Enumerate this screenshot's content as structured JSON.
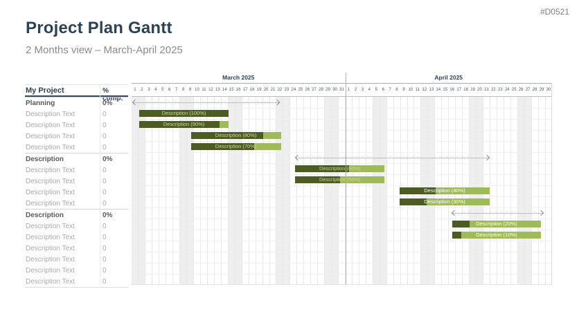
{
  "slide": {
    "id_tag": "#D0521",
    "title": "Project Plan Gantt",
    "subtitle": "2 Months view – March-April 2025"
  },
  "table": {
    "name_header": "My Project",
    "percent_header": "% comp."
  },
  "colors": {
    "navy": "#2d4355",
    "dark_green": "#4d5c23",
    "light_green": "#9fba59",
    "pale_label_green": "#ccd9a0",
    "white_label": "#ffffff",
    "section_text": "#595959",
    "task_text": "#a8a8a8",
    "arrow_gray": "#8c8c8c",
    "weekend_stripe": "#eeeeee"
  },
  "chart_data": {
    "type": "bar",
    "subtype": "gantt",
    "title": "Project Plan Gantt",
    "timeline": {
      "months": [
        {
          "label": "March 2025",
          "days": 31
        },
        {
          "label": "April 2025",
          "days": 30
        }
      ],
      "total_days": 61,
      "weekend_shading_day_starts": [
        0,
        7,
        14,
        21,
        28,
        35,
        42,
        49,
        56
      ]
    },
    "rows": [
      {
        "kind": "section",
        "label": "Planning",
        "value": "0%",
        "arrow": {
          "start_day": 0.3,
          "end_day": 21.3
        }
      },
      {
        "kind": "task",
        "label": "Description Text",
        "value": "0",
        "bar": {
          "label": "Description (100%)",
          "start_day": 1.08,
          "end_day": 14.1,
          "fill_percent": 100
        }
      },
      {
        "kind": "task",
        "label": "Description Text",
        "value": "0",
        "bar": {
          "label": "Description (90%)",
          "start_day": 1.08,
          "end_day": 14.1,
          "fill_percent": 90
        }
      },
      {
        "kind": "task",
        "label": "Description Text",
        "value": "0",
        "bar": {
          "label": "Description (80%)",
          "start_day": 8.61,
          "end_day": 21.66,
          "fill_percent": 80
        }
      },
      {
        "kind": "task",
        "label": "Description Text",
        "value": "0",
        "bar": {
          "label": "Description (70%)",
          "start_day": 8.61,
          "end_day": 21.66,
          "fill_percent": 70
        }
      },
      {
        "kind": "section",
        "label": "Description",
        "value": "0%",
        "arrow": {
          "start_day": 23.9,
          "end_day": 51.8
        }
      },
      {
        "kind": "task",
        "label": "Description Text",
        "value": "0",
        "bar": {
          "label": "Description (60%)",
          "start_day": 23.72,
          "end_day": 36.73,
          "fill_percent": 60
        }
      },
      {
        "kind": "task",
        "label": "Description Text",
        "value": "0",
        "bar": {
          "label": "Description (50%)",
          "start_day": 23.72,
          "end_day": 36.73,
          "fill_percent": 50
        }
      },
      {
        "kind": "task",
        "label": "Description Text",
        "value": "0",
        "bar": {
          "label": "Description (40%)",
          "start_day": 38.86,
          "end_day": 52.0,
          "fill_percent": 40
        }
      },
      {
        "kind": "task",
        "label": "Description Text",
        "value": "0",
        "bar": {
          "label": "Description (30%)",
          "start_day": 38.86,
          "end_day": 52.0,
          "fill_percent": 30
        }
      },
      {
        "kind": "section",
        "label": "Description",
        "value": "0%",
        "arrow": {
          "start_day": 46.6,
          "end_day": 59.6
        }
      },
      {
        "kind": "task",
        "label": "Description Text",
        "value": "0",
        "bar": {
          "label": "Description (20%)",
          "start_day": 46.5,
          "end_day": 59.4,
          "fill_percent": 20
        }
      },
      {
        "kind": "task",
        "label": "Description Text",
        "value": "0",
        "bar": {
          "label": "Description (10%)",
          "start_day": 46.5,
          "end_day": 59.4,
          "fill_percent": 10
        }
      },
      {
        "kind": "task",
        "label": "Description Text",
        "value": "0"
      },
      {
        "kind": "task",
        "label": "Description Text",
        "value": "0"
      },
      {
        "kind": "task",
        "label": "Description Text",
        "value": "0"
      },
      {
        "kind": "task",
        "label": "Description Text",
        "value": "0"
      }
    ]
  }
}
